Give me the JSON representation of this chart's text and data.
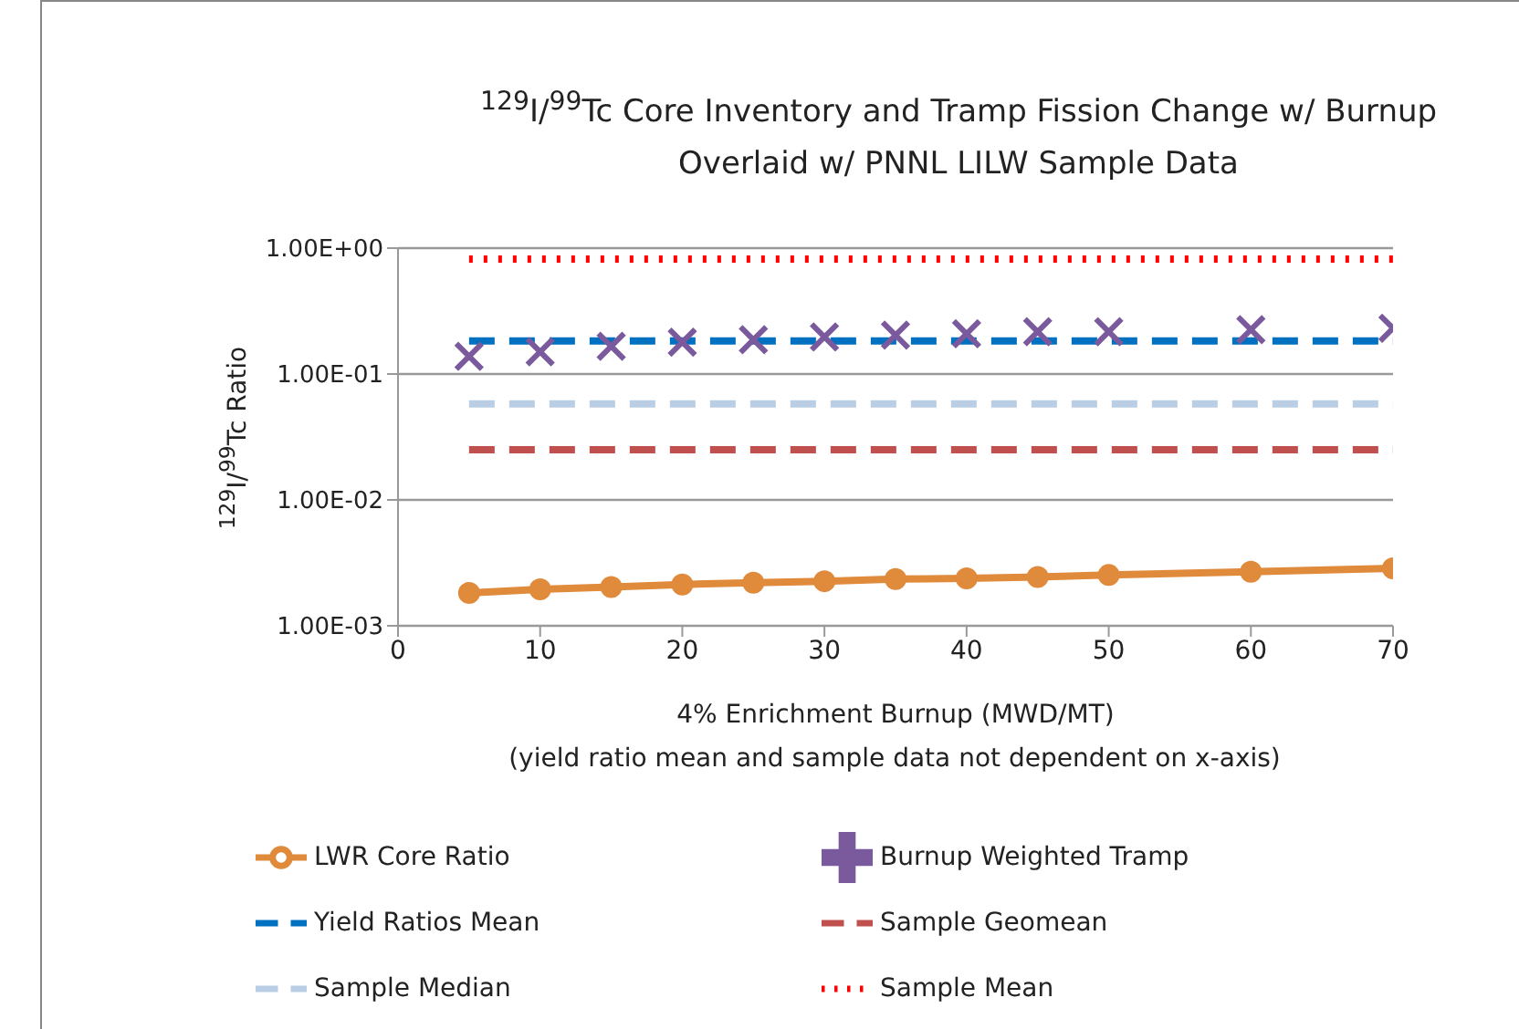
{
  "chart_data": {
    "type": "line",
    "title": "$^{129}$I/$^{99}$Tc Core Inventory and Tramp Fission Change w/ Burnup Overlaid w/ PNNL LILW Sample Data",
    "xlabel": "4% Enrichment Burnup (MWD/MT)",
    "ylabel": "$^{129}$I/$^{99}$Tc Ratio",
    "annotations": [
      "(yield ratio mean and sample data not dependent on x-axis)"
    ],
    "xlim": [
      0,
      70
    ],
    "xticks": [
      0,
      10,
      20,
      30,
      40,
      50,
      60,
      70
    ],
    "log": "y",
    "ylim": [
      0.001,
      1
    ],
    "yticks": [
      {
        "value": 0.001,
        "label": "1.00E-03"
      },
      {
        "value": 0.01,
        "label": "1.00E-02"
      },
      {
        "value": 0.1,
        "label": "1.00E-01"
      },
      {
        "value": 1,
        "label": "1.00E+00"
      }
    ],
    "grid": "y",
    "legend": "bottom",
    "series": [
      {
        "name": "LWR Core Ratio",
        "type": "line",
        "color": "#e08a3c",
        "marker": "circle",
        "line_style": "solid",
        "x": [
          5,
          10,
          15,
          20,
          25,
          30,
          35,
          40,
          45,
          50,
          60,
          70
        ],
        "values": [
          0.00182,
          0.00195,
          0.00203,
          0.00213,
          0.0022,
          0.00226,
          0.00235,
          0.00238,
          0.00244,
          0.00253,
          0.00269,
          0.00286
        ]
      },
      {
        "name": "Burnup Weighted Tramp",
        "type": "scatter",
        "color": "#7a5a9c",
        "marker": "cross",
        "x": [
          5,
          10,
          15,
          20,
          25,
          30,
          35,
          40,
          45,
          50,
          60,
          70
        ],
        "values": [
          0.138,
          0.15,
          0.166,
          0.179,
          0.187,
          0.197,
          0.204,
          0.209,
          0.217,
          0.217,
          0.225,
          0.231
        ]
      },
      {
        "name": "Yield Ratios Mean",
        "type": "line",
        "color": "#0070c0",
        "marker": "none",
        "line_style": "dashed",
        "x": [
          5,
          70
        ],
        "values": [
          0.183,
          0.183
        ]
      },
      {
        "name": "Sample Geomean",
        "type": "line",
        "color": "#c0504d",
        "marker": "none",
        "line_style": "dashed",
        "x": [
          5,
          70
        ],
        "values": [
          0.025,
          0.025
        ]
      },
      {
        "name": "Sample Median",
        "type": "line",
        "color": "#b9cde5",
        "marker": "none",
        "line_style": "dashed",
        "x": [
          5,
          70
        ],
        "values": [
          0.058,
          0.058
        ]
      },
      {
        "name": "Sample Mean",
        "type": "line",
        "color": "#ff0000",
        "marker": "none",
        "line_style": "dotted",
        "x": [
          5,
          70
        ],
        "values": [
          0.82,
          0.82
        ]
      }
    ]
  }
}
